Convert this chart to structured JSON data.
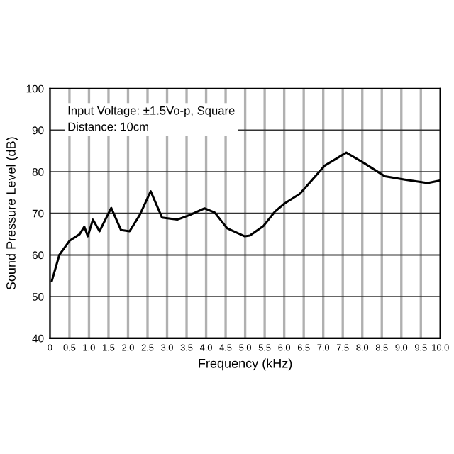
{
  "chart_data": {
    "type": "line",
    "xlabel": "Frequency (kHz)",
    "ylabel": "Sound Pressure Level (dB)",
    "annotations": [
      "Input Voltage: ±1.5Vo-p, Square",
      "Distance: 10cm"
    ],
    "xlim": [
      0,
      10
    ],
    "ylim": [
      40,
      100
    ],
    "xticks": [
      0,
      0.5,
      {
        "value": 1,
        "label": "1.0"
      },
      1.5,
      {
        "value": 2,
        "label": "2.0"
      },
      2.5,
      {
        "value": 3,
        "label": "3.0"
      },
      3.5,
      {
        "value": 4,
        "label": "4.0"
      },
      4.5,
      {
        "value": 5,
        "label": "5.0"
      },
      5.5,
      {
        "value": 6,
        "label": "6.0"
      },
      6.5,
      {
        "value": 7,
        "label": "7.0"
      },
      7.5,
      {
        "value": 8,
        "label": "8.0"
      },
      8.5,
      {
        "value": 9,
        "label": "9.0"
      },
      9.5,
      {
        "value": 10,
        "label": "10.0"
      }
    ],
    "yticks": [
      40,
      50,
      60,
      70,
      80,
      90,
      100
    ],
    "grid": true,
    "legend": false,
    "marker": "none",
    "line_style": "solid",
    "series": [
      {
        "color": "#000000",
        "x": [
          0.05,
          0.24,
          0.5,
          0.76,
          0.88,
          0.97,
          1.1,
          1.27,
          1.57,
          1.82,
          2.04,
          2.3,
          2.58,
          2.87,
          3.26,
          3.58,
          3.96,
          4.22,
          4.54,
          4.99,
          5.12,
          5.47,
          5.76,
          6.01,
          6.4,
          7.04,
          7.59,
          8.06,
          8.58,
          9.09,
          9.67,
          10.0
        ],
        "values": [
          53.8,
          60,
          63.4,
          65,
          66.8,
          64.5,
          68.5,
          65.7,
          71.3,
          66,
          65.7,
          69.6,
          75.3,
          69,
          68.5,
          69.6,
          71.2,
          70.2,
          66.4,
          64.5,
          64.7,
          67,
          70.4,
          72.4,
          74.7,
          81.5,
          84.6,
          82,
          78.9,
          78.1,
          77.3,
          77.9
        ]
      }
    ]
  }
}
